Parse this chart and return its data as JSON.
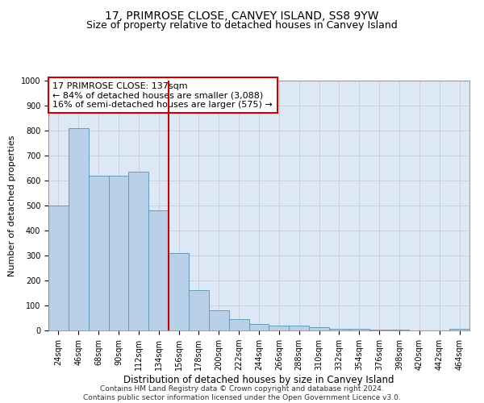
{
  "title": "17, PRIMROSE CLOSE, CANVEY ISLAND, SS8 9YW",
  "subtitle": "Size of property relative to detached houses in Canvey Island",
  "xlabel": "Distribution of detached houses by size in Canvey Island",
  "ylabel": "Number of detached properties",
  "bin_labels": [
    "24sqm",
    "46sqm",
    "68sqm",
    "90sqm",
    "112sqm",
    "134sqm",
    "156sqm",
    "178sqm",
    "200sqm",
    "222sqm",
    "244sqm",
    "266sqm",
    "288sqm",
    "310sqm",
    "332sqm",
    "354sqm",
    "376sqm",
    "398sqm",
    "420sqm",
    "442sqm",
    "464sqm"
  ],
  "bar_heights": [
    500,
    810,
    620,
    620,
    635,
    480,
    310,
    160,
    80,
    45,
    25,
    20,
    18,
    12,
    8,
    5,
    3,
    2,
    1,
    0,
    8
  ],
  "bar_color": "#b8d0e8",
  "bar_edge_color": "#6699bb",
  "red_line_color": "#cc0000",
  "annotation_text": "17 PRIMROSE CLOSE: 137sqm\n← 84% of detached houses are smaller (3,088)\n16% of semi-detached houses are larger (575) →",
  "annotation_box_color": "#ffffff",
  "annotation_box_edge_color": "#cc0000",
  "ylim": [
    0,
    1000
  ],
  "yticks": [
    0,
    100,
    200,
    300,
    400,
    500,
    600,
    700,
    800,
    900,
    1000
  ],
  "grid_color": "#cccccc",
  "background_color": "#dce8f5",
  "footer_text": "Contains HM Land Registry data © Crown copyright and database right 2024.\nContains public sector information licensed under the Open Government Licence v3.0.",
  "title_fontsize": 10,
  "subtitle_fontsize": 9,
  "xlabel_fontsize": 8.5,
  "ylabel_fontsize": 8,
  "tick_fontsize": 7,
  "annotation_fontsize": 8,
  "footer_fontsize": 6.5
}
